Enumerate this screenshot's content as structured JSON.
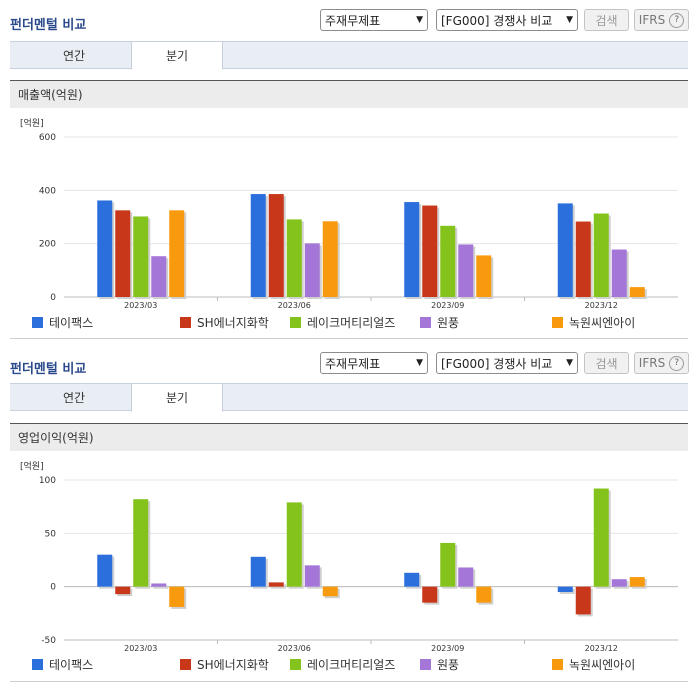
{
  "panels": [
    {
      "title": "펀더멘털 비교",
      "statement_select": "주재무제표",
      "peer_select": "[FG000] 경쟁사 비교",
      "search_label": "검색",
      "ifrs_label": "IFRS",
      "help_symbol": "?",
      "tabs": [
        {
          "label": "연간",
          "active": false
        },
        {
          "label": "분기",
          "active": true
        }
      ],
      "chart_title": "매출액(억원)",
      "unit_label": "[억원]"
    },
    {
      "title": "펀더멘털 비교",
      "statement_select": "주재무제표",
      "peer_select": "[FG000] 경쟁사 비교",
      "search_label": "검색",
      "ifrs_label": "IFRS",
      "help_symbol": "?",
      "tabs": [
        {
          "label": "연간",
          "active": false
        },
        {
          "label": "분기",
          "active": true
        }
      ],
      "chart_title": "영업이익(억원)",
      "unit_label": "[억원]"
    }
  ],
  "colors": [
    "#2a6fdc",
    "#c8371a",
    "#84c21c",
    "#a476d8",
    "#f79a0d"
  ],
  "chart_data": [
    {
      "type": "bar",
      "title": "매출액(억원)",
      "ylabel": "[억원]",
      "categories": [
        "2023/03",
        "2023/06",
        "2023/09",
        "2023/12"
      ],
      "ylim": [
        0,
        600
      ],
      "yticks": [
        0,
        200,
        400,
        600
      ],
      "series": [
        {
          "name": "테이팩스",
          "values": [
            362,
            386,
            356,
            351
          ]
        },
        {
          "name": "SH에너지화학",
          "values": [
            325,
            386,
            343,
            283
          ]
        },
        {
          "name": "레이크머티리얼즈",
          "values": [
            302,
            291,
            267,
            313
          ]
        },
        {
          "name": "원풍",
          "values": [
            153,
            201,
            197,
            178
          ]
        },
        {
          "name": "녹원씨엔아이",
          "values": [
            325,
            284,
            156,
            37
          ]
        }
      ]
    },
    {
      "type": "bar",
      "title": "영업이익(억원)",
      "ylabel": "[억원]",
      "categories": [
        "2023/03",
        "2023/06",
        "2023/09",
        "2023/12"
      ],
      "ylim": [
        -50,
        100
      ],
      "yticks": [
        -50,
        0,
        50,
        100
      ],
      "series": [
        {
          "name": "테이팩스",
          "values": [
            30,
            28,
            13,
            -5
          ]
        },
        {
          "name": "SH에너지화학",
          "values": [
            -7,
            4,
            -15,
            -26
          ]
        },
        {
          "name": "레이크머티리얼즈",
          "values": [
            82,
            79,
            41,
            92
          ]
        },
        {
          "name": "원풍",
          "values": [
            3,
            20,
            18,
            7
          ]
        },
        {
          "name": "녹원씨엔아이",
          "values": [
            -19,
            -9,
            -15,
            9
          ]
        }
      ]
    }
  ]
}
